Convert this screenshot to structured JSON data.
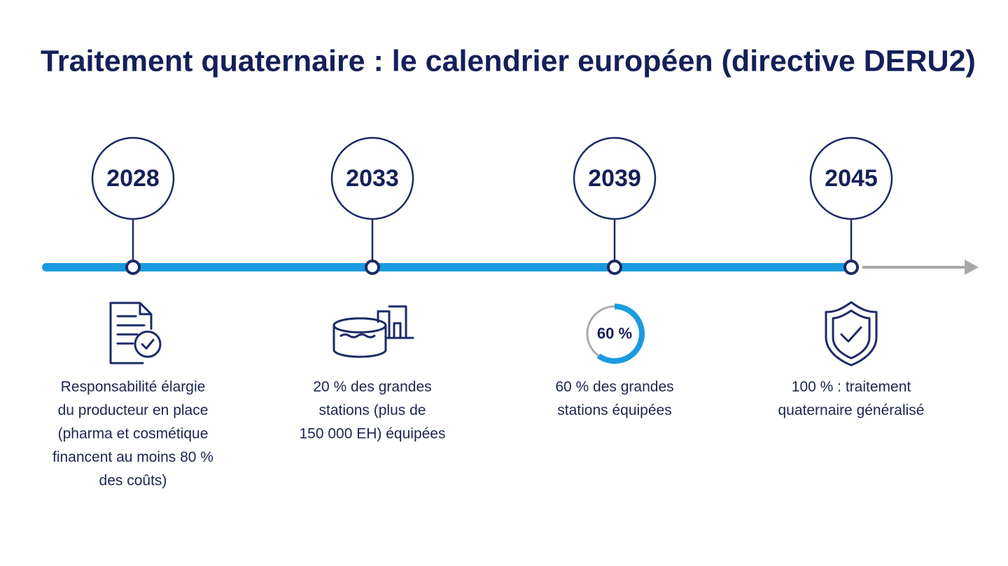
{
  "title": "Traitement quaternaire : le calendrier européen (directive DERU2)",
  "milestones": [
    {
      "year": "2028",
      "lines": [
        "Responsabilité élargie",
        "du producteur en place",
        "(pharma et cosmétique",
        "financent au moins 80 %",
        "des coûts)"
      ]
    },
    {
      "year": "2033",
      "lines": [
        "20 % des grandes",
        "stations (plus de",
        "150 000 EH) équipées"
      ]
    },
    {
      "year": "2039",
      "gauge": {
        "value": 60,
        "label": "60 %"
      },
      "lines": [
        "60 % des grandes",
        "stations équipées"
      ]
    },
    {
      "year": "2045",
      "lines": [
        "100 % : traitement",
        "quaternaire généralisé"
      ]
    }
  ]
}
